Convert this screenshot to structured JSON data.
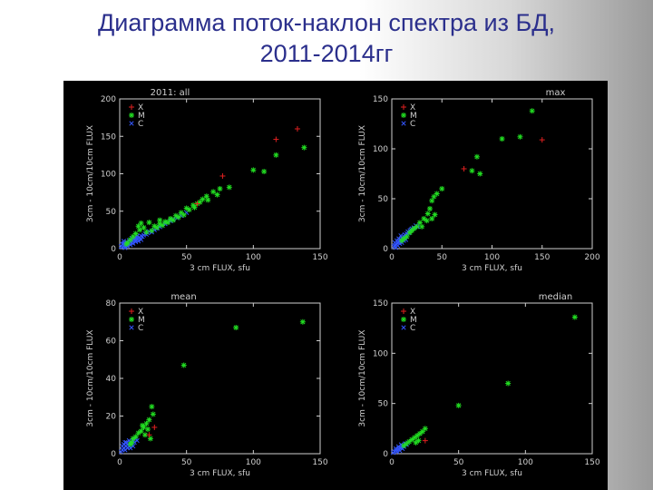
{
  "slide": {
    "title_line1": "Диаграмма поток-наклон спектра из БД,",
    "title_line2": "2011-2014гг"
  },
  "colors": {
    "background": "#000000",
    "axes": "#cfcfcf",
    "X": "#e02020",
    "M": "#22dd22",
    "C": "#3355ff"
  },
  "chart_data": [
    {
      "type": "scatter",
      "title": "2011: all",
      "xlabel": "3 cm FLUX, sfu",
      "ylabel": "3cm - 10cm/10cm FLUX",
      "xlim": [
        0,
        150
      ],
      "ylim": [
        0,
        200
      ],
      "xticks": [
        0,
        50,
        100,
        150
      ],
      "yticks": [
        0,
        50,
        100,
        150,
        200
      ],
      "legend": [
        "X",
        "M",
        "C"
      ],
      "legend_position": "top-left",
      "series": [
        {
          "name": "X",
          "marker": "+",
          "points": [
            [
              77,
              97
            ],
            [
              58,
              60
            ],
            [
              117,
              146
            ],
            [
              133,
              160
            ]
          ]
        },
        {
          "name": "M",
          "marker": "*",
          "points": [
            [
              138,
              135
            ],
            [
              117,
              125
            ],
            [
              108,
              103
            ],
            [
              100,
              105
            ],
            [
              82,
              82
            ],
            [
              73,
              72
            ],
            [
              75,
              80
            ],
            [
              70,
              76
            ],
            [
              65,
              70
            ],
            [
              62,
              66
            ],
            [
              58,
              60
            ],
            [
              55,
              58
            ],
            [
              50,
              54
            ],
            [
              46,
              48
            ],
            [
              42,
              44
            ],
            [
              38,
              40
            ],
            [
              34,
              36
            ],
            [
              30,
              33
            ],
            [
              26,
              30
            ],
            [
              22,
              35
            ],
            [
              18,
              28
            ],
            [
              15,
              25
            ],
            [
              12,
              20
            ],
            [
              10,
              16
            ],
            [
              8,
              12
            ],
            [
              20,
              22
            ],
            [
              24,
              24
            ],
            [
              28,
              28
            ],
            [
              32,
              31
            ],
            [
              36,
              35
            ],
            [
              40,
              38
            ],
            [
              44,
              42
            ],
            [
              48,
              45
            ],
            [
              52,
              52
            ],
            [
              56,
              55
            ],
            [
              60,
              62
            ],
            [
              66,
              65
            ],
            [
              14,
              30
            ],
            [
              16,
              34
            ],
            [
              30,
              38
            ],
            [
              6,
              8
            ],
            [
              5,
              6
            ]
          ]
        },
        {
          "name": "C",
          "marker": "x",
          "points": [
            [
              2,
              2
            ],
            [
              3,
              4
            ],
            [
              4,
              3
            ],
            [
              5,
              5
            ],
            [
              6,
              6
            ],
            [
              7,
              7
            ],
            [
              8,
              9
            ],
            [
              9,
              8
            ],
            [
              10,
              10
            ],
            [
              11,
              12
            ],
            [
              12,
              11
            ],
            [
              13,
              14
            ],
            [
              14,
              13
            ],
            [
              15,
              15
            ],
            [
              16,
              17
            ],
            [
              17,
              16
            ],
            [
              18,
              18
            ],
            [
              19,
              20
            ],
            [
              20,
              19
            ],
            [
              21,
              21
            ],
            [
              22,
              23
            ],
            [
              24,
              22
            ],
            [
              26,
              25
            ],
            [
              28,
              27
            ],
            [
              30,
              29
            ],
            [
              32,
              31
            ],
            [
              34,
              33
            ],
            [
              36,
              35
            ],
            [
              38,
              37
            ],
            [
              40,
              39
            ],
            [
              43,
              41
            ],
            [
              46,
              44
            ],
            [
              50,
              48
            ],
            [
              3,
              7
            ],
            [
              5,
              9
            ],
            [
              7,
              11
            ],
            [
              9,
              14
            ],
            [
              11,
              15
            ],
            [
              13,
              17
            ],
            [
              4,
              1
            ],
            [
              6,
              3
            ],
            [
              8,
              5
            ],
            [
              10,
              7
            ],
            [
              12,
              9
            ],
            [
              14,
              10
            ],
            [
              16,
              12
            ],
            [
              2,
              6
            ],
            [
              3,
              10
            ],
            [
              1,
              3
            ]
          ]
        }
      ]
    },
    {
      "type": "scatter",
      "title": "max",
      "xlabel": "3 cm FLUX, sfu",
      "ylabel": "3cm - 10cm/10cm FLUX",
      "xlim": [
        0,
        200
      ],
      "ylim": [
        0,
        150
      ],
      "xticks": [
        0,
        50,
        100,
        150,
        200
      ],
      "yticks": [
        0,
        50,
        100,
        150
      ],
      "legend": [
        "X",
        "M",
        "C"
      ],
      "legend_position": "top-left",
      "series": [
        {
          "name": "X",
          "marker": "+",
          "points": [
            [
              72,
              80
            ],
            [
              150,
              109
            ]
          ]
        },
        {
          "name": "M",
          "marker": "*",
          "points": [
            [
              140,
              138
            ],
            [
              128,
              112
            ],
            [
              110,
              110
            ],
            [
              85,
              92
            ],
            [
              80,
              78
            ],
            [
              88,
              75
            ],
            [
              50,
              60
            ],
            [
              45,
              55
            ],
            [
              42,
              52
            ],
            [
              40,
              48
            ],
            [
              38,
              40
            ],
            [
              36,
              35
            ],
            [
              32,
              30
            ],
            [
              28,
              26
            ],
            [
              25,
              22
            ],
            [
              22,
              20
            ],
            [
              20,
              18
            ],
            [
              18,
              16
            ],
            [
              15,
              12
            ],
            [
              12,
              10
            ],
            [
              10,
              8
            ],
            [
              30,
              22
            ],
            [
              35,
              28
            ],
            [
              43,
              34
            ],
            [
              40,
              30
            ]
          ]
        },
        {
          "name": "C",
          "marker": "x",
          "points": [
            [
              2,
              2
            ],
            [
              3,
              3
            ],
            [
              4,
              5
            ],
            [
              5,
              4
            ],
            [
              6,
              6
            ],
            [
              7,
              8
            ],
            [
              8,
              7
            ],
            [
              9,
              9
            ],
            [
              10,
              11
            ],
            [
              11,
              10
            ],
            [
              12,
              12
            ],
            [
              13,
              14
            ],
            [
              14,
              13
            ],
            [
              15,
              15
            ],
            [
              16,
              17
            ],
            [
              17,
              16
            ],
            [
              18,
              18
            ],
            [
              19,
              19
            ],
            [
              20,
              20
            ],
            [
              22,
              21
            ],
            [
              24,
              23
            ],
            [
              26,
              22
            ],
            [
              3,
              6
            ],
            [
              5,
              8
            ],
            [
              7,
              10
            ],
            [
              9,
              13
            ],
            [
              4,
              1
            ],
            [
              6,
              3
            ],
            [
              8,
              5
            ],
            [
              10,
              6
            ],
            [
              12,
              8
            ],
            [
              14,
              9
            ]
          ]
        }
      ]
    },
    {
      "type": "scatter",
      "title": "mean",
      "xlabel": "3 cm FLUX, sfu",
      "ylabel": "3cm - 10cm/10cm FLUX",
      "xlim": [
        0,
        150
      ],
      "ylim": [
        0,
        80
      ],
      "xticks": [
        0,
        50,
        100,
        150
      ],
      "yticks": [
        0,
        20,
        40,
        60,
        80
      ],
      "legend": [
        "X",
        "M",
        "C"
      ],
      "legend_position": "top-left",
      "series": [
        {
          "name": "X",
          "marker": "+",
          "points": [
            [
              22,
              10
            ],
            [
              26,
              14
            ]
          ]
        },
        {
          "name": "M",
          "marker": "*",
          "points": [
            [
              137,
              70
            ],
            [
              87,
              67
            ],
            [
              48,
              47
            ],
            [
              24,
              25
            ],
            [
              25,
              21
            ],
            [
              22,
              18
            ],
            [
              20,
              16
            ],
            [
              18,
              14
            ],
            [
              16,
              12
            ],
            [
              14,
              11
            ],
            [
              12,
              9
            ],
            [
              10,
              8
            ],
            [
              9,
              6
            ],
            [
              8,
              5
            ],
            [
              23,
              8
            ],
            [
              19,
              10
            ],
            [
              17,
              15
            ],
            [
              21,
              13
            ]
          ]
        },
        {
          "name": "C",
          "marker": "x",
          "points": [
            [
              1,
              1
            ],
            [
              2,
              2
            ],
            [
              3,
              3
            ],
            [
              4,
              2
            ],
            [
              5,
              4
            ],
            [
              6,
              5
            ],
            [
              7,
              4
            ],
            [
              8,
              6
            ],
            [
              9,
              5
            ],
            [
              10,
              7
            ],
            [
              11,
              6
            ],
            [
              12,
              8
            ],
            [
              13,
              7
            ],
            [
              3,
              5
            ],
            [
              5,
              6
            ],
            [
              7,
              7
            ],
            [
              2,
              4
            ],
            [
              4,
              6
            ],
            [
              6,
              3
            ],
            [
              8,
              3
            ],
            [
              10,
              4
            ]
          ]
        }
      ]
    },
    {
      "type": "scatter",
      "title": "median",
      "xlabel": "3 cm FLUX, sfu",
      "ylabel": "3cm - 10cm/10cm FLUX",
      "xlim": [
        0,
        150
      ],
      "ylim": [
        0,
        150
      ],
      "xticks": [
        0,
        50,
        100,
        150
      ],
      "yticks": [
        0,
        50,
        100,
        150
      ],
      "legend": [
        "X",
        "M",
        "C"
      ],
      "legend_position": "top-left",
      "series": [
        {
          "name": "X",
          "marker": "+",
          "points": [
            [
              25,
              13
            ]
          ]
        },
        {
          "name": "M",
          "marker": "*",
          "points": [
            [
              137,
              136
            ],
            [
              87,
              70
            ],
            [
              50,
              48
            ],
            [
              25,
              25
            ],
            [
              23,
              22
            ],
            [
              21,
              20
            ],
            [
              19,
              18
            ],
            [
              17,
              16
            ],
            [
              15,
              14
            ],
            [
              13,
              12
            ],
            [
              11,
              10
            ],
            [
              9,
              8
            ],
            [
              20,
              13
            ],
            [
              18,
              11
            ]
          ]
        },
        {
          "name": "C",
          "marker": "x",
          "points": [
            [
              1,
              1
            ],
            [
              2,
              2
            ],
            [
              3,
              3
            ],
            [
              4,
              4
            ],
            [
              5,
              5
            ],
            [
              6,
              6
            ],
            [
              7,
              6
            ],
            [
              8,
              8
            ],
            [
              9,
              7
            ],
            [
              10,
              10
            ],
            [
              11,
              9
            ],
            [
              12,
              11
            ],
            [
              3,
              5
            ],
            [
              5,
              7
            ],
            [
              7,
              9
            ],
            [
              4,
              2
            ],
            [
              6,
              3
            ],
            [
              8,
              5
            ]
          ]
        }
      ]
    }
  ]
}
